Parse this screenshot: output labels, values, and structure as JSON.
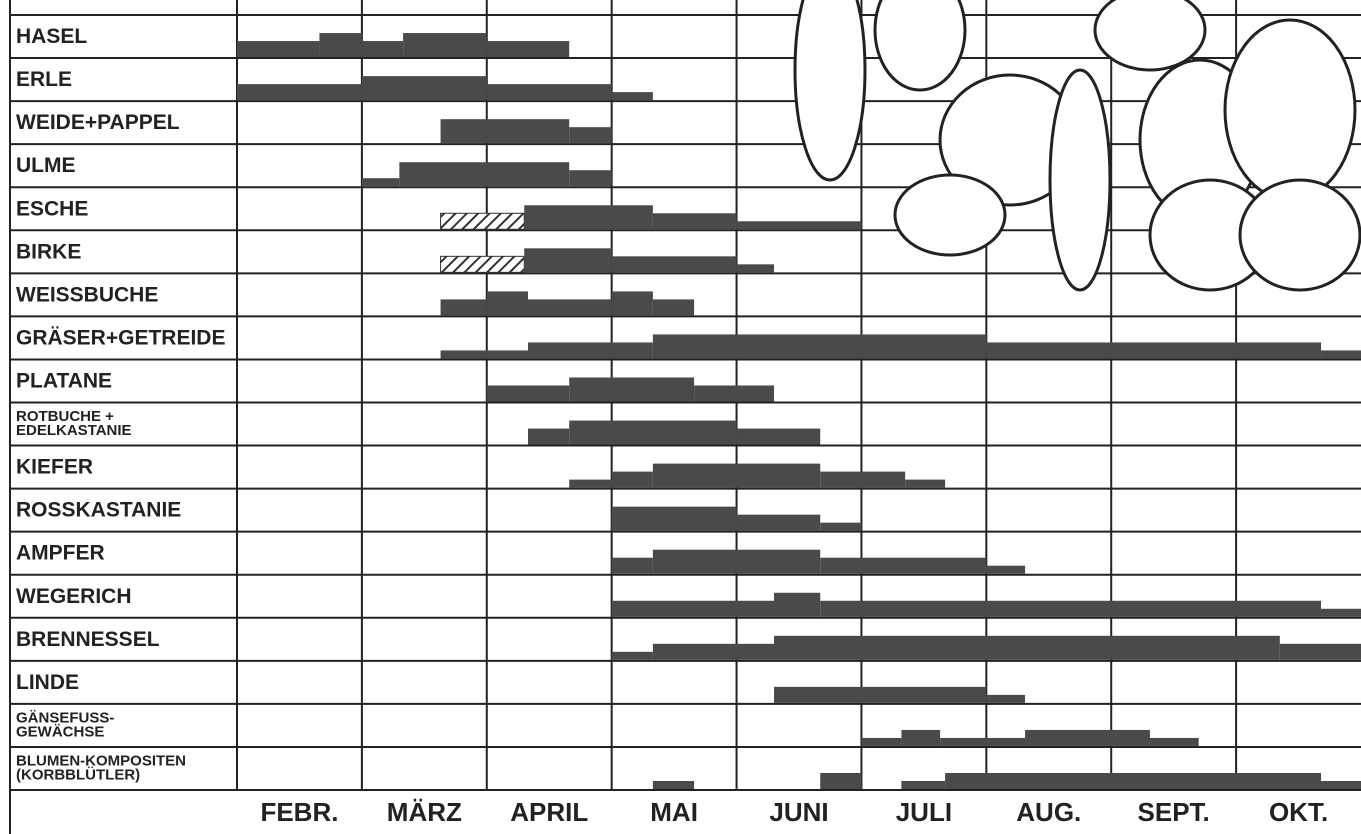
{
  "chart_data": {
    "type": "gantt",
    "categories": [
      "FEBR.",
      "MÄRZ",
      "APRIL",
      "MAI",
      "JUNI",
      "JULI",
      "AUG.",
      "SEPT.",
      "OKT."
    ],
    "color": "#4a4a4a",
    "rows": [
      {
        "label": [
          "HASEL"
        ],
        "segments": [
          {
            "start": 0,
            "end": 0.66,
            "level": 2
          },
          {
            "start": 0.66,
            "end": 1,
            "level": 3
          },
          {
            "start": 1,
            "end": 1.33,
            "level": 2
          },
          {
            "start": 1.33,
            "end": 2,
            "level": 3
          },
          {
            "start": 2,
            "end": 2.66,
            "level": 2
          }
        ]
      },
      {
        "label": [
          "ERLE"
        ],
        "segments": [
          {
            "start": 0,
            "end": 1,
            "level": 2
          },
          {
            "start": 1,
            "end": 2,
            "level": 3
          },
          {
            "start": 2,
            "end": 3,
            "level": 2
          },
          {
            "start": 3,
            "end": 3.33,
            "level": 1
          }
        ]
      },
      {
        "label": [
          "WEIDE+PAPPEL"
        ],
        "segments": [
          {
            "start": 1.63,
            "end": 2.66,
            "level": 3
          },
          {
            "start": 2.66,
            "end": 3,
            "level": 2
          }
        ]
      },
      {
        "label": [
          "ULME"
        ],
        "segments": [
          {
            "start": 1,
            "end": 1.3,
            "level": 1
          },
          {
            "start": 1.3,
            "end": 2.66,
            "level": 3
          },
          {
            "start": 2.66,
            "end": 3,
            "level": 2
          }
        ]
      },
      {
        "label": [
          "ESCHE"
        ],
        "segments": [
          {
            "start": 1.63,
            "end": 2.3,
            "level": 2,
            "pattern": "hatched"
          },
          {
            "start": 2.3,
            "end": 3.33,
            "level": 3
          },
          {
            "start": 3.33,
            "end": 4,
            "level": 2
          },
          {
            "start": 4,
            "end": 5,
            "level": 1
          }
        ]
      },
      {
        "label": [
          "BIRKE"
        ],
        "segments": [
          {
            "start": 1.63,
            "end": 2.3,
            "level": 2,
            "pattern": "hatched"
          },
          {
            "start": 2.3,
            "end": 3,
            "level": 3
          },
          {
            "start": 3,
            "end": 4,
            "level": 2
          },
          {
            "start": 4,
            "end": 4.3,
            "level": 1
          }
        ]
      },
      {
        "label": [
          "WEISSBUCHE"
        ],
        "segments": [
          {
            "start": 1.63,
            "end": 2,
            "level": 2
          },
          {
            "start": 2,
            "end": 2.33,
            "level": 3
          },
          {
            "start": 2.33,
            "end": 3,
            "level": 2
          },
          {
            "start": 3,
            "end": 3.33,
            "level": 3
          },
          {
            "start": 3.33,
            "end": 3.66,
            "level": 2
          }
        ]
      },
      {
        "label": [
          "GRÄSER+GETREIDE"
        ],
        "segments": [
          {
            "start": 1.63,
            "end": 2.33,
            "level": 1
          },
          {
            "start": 2.33,
            "end": 3.33,
            "level": 2
          },
          {
            "start": 3.33,
            "end": 6,
            "level": 3
          },
          {
            "start": 6,
            "end": 8.68,
            "level": 2
          },
          {
            "start": 8.68,
            "end": 9,
            "level": 1
          }
        ]
      },
      {
        "label": [
          "PLATANE"
        ],
        "segments": [
          {
            "start": 2,
            "end": 2.66,
            "level": 2
          },
          {
            "start": 2.66,
            "end": 3.66,
            "level": 3
          },
          {
            "start": 3.66,
            "end": 4.3,
            "level": 2
          }
        ]
      },
      {
        "label": [
          "ROTBUCHE +",
          "EDELKASTANIE"
        ],
        "segments": [
          {
            "start": 2.33,
            "end": 2.66,
            "level": 2
          },
          {
            "start": 2.66,
            "end": 4,
            "level": 3
          },
          {
            "start": 4,
            "end": 4.67,
            "level": 2
          }
        ]
      },
      {
        "label": [
          "KIEFER"
        ],
        "segments": [
          {
            "start": 2.66,
            "end": 3,
            "level": 1
          },
          {
            "start": 3,
            "end": 3.33,
            "level": 2
          },
          {
            "start": 3.33,
            "end": 4.67,
            "level": 3
          },
          {
            "start": 4.67,
            "end": 5.35,
            "level": 2
          },
          {
            "start": 5.35,
            "end": 5.67,
            "level": 1
          }
        ]
      },
      {
        "label": [
          "ROSSKASTANIE"
        ],
        "segments": [
          {
            "start": 3,
            "end": 4,
            "level": 3
          },
          {
            "start": 4,
            "end": 4.67,
            "level": 2
          },
          {
            "start": 4.67,
            "end": 5,
            "level": 1
          }
        ]
      },
      {
        "label": [
          "AMPFER"
        ],
        "segments": [
          {
            "start": 3,
            "end": 3.33,
            "level": 2
          },
          {
            "start": 3.33,
            "end": 4.67,
            "level": 3
          },
          {
            "start": 4.67,
            "end": 6,
            "level": 2
          },
          {
            "start": 6,
            "end": 6.31,
            "level": 1
          }
        ]
      },
      {
        "label": [
          "WEGERICH"
        ],
        "segments": [
          {
            "start": 3,
            "end": 4.3,
            "level": 2
          },
          {
            "start": 4.3,
            "end": 4.67,
            "level": 3
          },
          {
            "start": 4.67,
            "end": 8.68,
            "level": 2
          },
          {
            "start": 8.68,
            "end": 9,
            "level": 1
          }
        ]
      },
      {
        "label": [
          "BRENNESSEL"
        ],
        "segments": [
          {
            "start": 3,
            "end": 3.33,
            "level": 1
          },
          {
            "start": 3.33,
            "end": 4.3,
            "level": 2
          },
          {
            "start": 4.3,
            "end": 8.35,
            "level": 3
          },
          {
            "start": 8.35,
            "end": 9,
            "level": 2
          }
        ]
      },
      {
        "label": [
          "LINDE"
        ],
        "segments": [
          {
            "start": 4.3,
            "end": 6,
            "level": 2
          },
          {
            "start": 6,
            "end": 6.31,
            "level": 1
          }
        ]
      },
      {
        "label": [
          "GÄNSEFUSS-",
          "GEWÄCHSE"
        ],
        "segments": [
          {
            "start": 5,
            "end": 5.32,
            "level": 1
          },
          {
            "start": 5.32,
            "end": 5.63,
            "level": 2
          },
          {
            "start": 5.63,
            "end": 6.31,
            "level": 1
          },
          {
            "start": 6.31,
            "end": 7.31,
            "level": 2
          },
          {
            "start": 7.31,
            "end": 7.7,
            "level": 1
          }
        ]
      },
      {
        "label": [
          "BLUMEN-KOMPOSITEN",
          "(KORBBLÜTLER)"
        ],
        "segments": [
          {
            "start": 3.33,
            "end": 3.66,
            "level": 1
          },
          {
            "start": 4.67,
            "end": 5,
            "level": 2
          },
          {
            "start": 5.32,
            "end": 5.67,
            "level": 1
          },
          {
            "start": 5.67,
            "end": 8.68,
            "level": 2
          },
          {
            "start": 8.68,
            "end": 9,
            "level": 1
          }
        ]
      }
    ]
  }
}
